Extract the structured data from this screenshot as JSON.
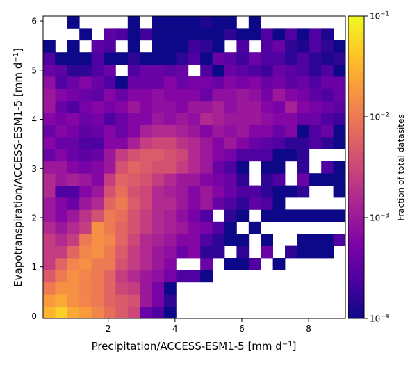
{
  "chart_data": {
    "type": "heatmap",
    "title": "",
    "xlabel": "Precipitation/ACCESS-ESM1-5 [mm d",
    "xlabel_sup": "−1",
    "xlabel_end": "]",
    "ylabel": "Evapotranspiration/ACCESS-ESM1-5 [mm d",
    "ylabel_sup": "−1",
    "ylabel_end": "]",
    "xlim": [
      0.05,
      9.1
    ],
    "ylim": [
      -0.05,
      6.1
    ],
    "xticks": [
      2,
      4,
      6,
      8
    ],
    "yticks": [
      0,
      1,
      2,
      3,
      4,
      5,
      6
    ],
    "colormap": "plasma",
    "color_scale": "log",
    "colorbar": {
      "label": "Fraction of total datasites",
      "min": 0.0001,
      "max": 0.1,
      "ticks": [
        {
          "value": 0.1,
          "base": "10",
          "exp": "−1"
        },
        {
          "value": 0.01,
          "base": "10",
          "exp": "−2"
        },
        {
          "value": 0.001,
          "base": "10",
          "exp": "−3"
        },
        {
          "value": 0.0001,
          "base": "10",
          "exp": "−4"
        }
      ]
    },
    "grid": false,
    "bins": {
      "nx": 25,
      "ny": 25,
      "x_edges": [
        0.05,
        9.1
      ],
      "y_edges": [
        -0.05,
        6.1
      ],
      "note_empty": "white cells are empty bins"
    },
    "cells_log10": [
      "-1.5,-1.3,-1.6,-1.7,-1.9,-2.1,-2.3,-2.5,-3.4,-3.6,-4.0,_,_,_,_,_,_,_,_,_,_,_,_,_,_",
      "-1.7,-1.6,-1.8,-1.9,-2.0,-2.2,-2.3,-2.4,-3.0,-3.3,-3.8,_,_,_,_,_,_,_,_,_,_,_,_,_,_",
      "-2.0,-1.8,-1.8,-1.9,-2.0,-2.2,-2.5,-2.6,-3.0,-3.3,-4.0,_,_,_,_,_,_,_,_,_,_,_,_,_,_",
      "-2.3,-2.0,-1.8,-1.9,-2.0,-2.2,-2.6,-2.8,-3.0,-3.1,-3.3,-3.6,-3.6,-4.0,_,_,_,_,_,_,_,_,_,_,_",
      "-2.6,-2.2,-1.9,-1.8,-2.0,-2.0,-2.4,-2.6,-2.8,-3.0,-3.2,_,_,-3.4,_,-4.0,-4.0,-3.6,_,-4.0,_,_,_,_,_",
      "-2.6,-2.6,-2.2,-1.9,-1.8,-2.0,-2.3,-2.6,-2.8,-3.0,-3.1,-3.4,-3.2,-3.8,-3.8,_,-3.8,_,-3.4,_,-3.8,-4.0,-4.0,-4.0,_",
      "-2.6,-2.8,-2.6,-2.0,-1.8,-1.9,-2.2,-2.5,-2.8,-2.9,-3.0,-3.2,-3.2,-3.6,-3.8,-4.0,-4.0,_,-4.0,_,_,-4.0,-4.0,-4.0,-3.6",
      "-2.8,-3.0,-2.8,-2.6,-1.8,-2.0,-2.2,-2.4,-2.6,-2.8,-2.9,-3.0,-3.2,-3.3,-3.6,-4.0,_,-4.0,_,_,_,_,_,_,_",
      "-3.0,-3.2,-3.0,-2.7,-2.4,-2.0,-2.1,-2.4,-2.6,-2.8,-2.9,-3.1,-3.3,-3.6,_,-3.8,-4.0,_,-4.0,-4.0,-4.0,-4.0,-4.0,-4.0,-4.0",
      "-3.0,-3.2,-3.4,-3.0,-2.8,-2.2,-2.0,-2.3,-2.5,-2.8,-2.8,-3.0,-3.2,-3.0,-3.4,-3.6,-3.8,-3.5,-3.6,-4.0,_,_,_,_,_",
      "-2.8,-3.6,-3.6,-3.2,-3.0,-2.4,-2.1,-2.4,-2.5,-2.8,-2.9,-3.0,-3.2,-3.0,-3.2,-3.4,-3.6,-3.6,-3.8,-4.0,-4.0,-3.8,_,_,-4.0",
      "-2.8,-3.0,-2.9,-3.0,-3.2,-2.6,-2.2,-2.3,-2.4,-2.6,-2.8,-3.0,-3.0,-3.2,-3.3,-3.4,-3.8,_,-3.8,-3.6,_,-3.4,-4.0,-4.0,-4.0",
      "-3.0,-3.0,-3.2,-3.3,-3.2,-3.0,-2.4,-2.2,-2.3,-2.4,-2.4,-2.6,-2.8,-3.0,-3.4,-3.6,-4.0,_,-4.0,-4.0,_,-3.8,_,-3.6,-4.0",
      "-3.4,-3.2,-3.4,-3.5,-3.4,-3.0,-2.6,-2.4,-2.3,-2.3,-2.4,-2.5,-2.8,-3.0,-3.2,-3.3,-3.6,-3.6,-3.6,-4.0,-4.0,-3.8,_,_,_",
      "-3.2,-3.4,-3.4,-3.6,-3.6,-3.2,-3.2,-2.9,-2.6,-2.5,-2.5,-2.7,-2.8,-3.0,-3.2,-3.0,-3.2,-3.4,-3.5,-3.6,-3.8,-3.8,-3.6,-3.8,-4.0",
      "-3.4,-3.2,-3.3,-3.5,-3.4,-3.2,-3.4,-3.2,-2.9,-2.8,-2.8,-2.9,-3.0,-3.2,-3.0,-3.1,-3.0,-3.2,-3.2,-3.4,-3.2,-4.0,-3.6,-3.4,-4.0",
      "-3.2,-3.3,-3.2,-3.4,-3.3,-3.6,-3.4,-3.2,-3.2,-3.0,-3.1,-3.0,-3.1,-2.8,-2.9,-3.0,-3.0,-3.0,-3.1,-3.2,-3.2,-3.4,-3.4,-3.6,-3.7",
      "-3.0,-3.4,-3.6,-3.3,-3.2,-3.3,-3.2,-3.0,-3.2,-3.1,-3.1,-3.2,-3.0,-3.0,-2.9,-3.1,-3.0,-3.0,-3.2,-3.3,-2.9,-3.2,-3.3,-3.4,-3.5",
      "-3.0,-3.2,-3.3,-3.4,-3.5,-3.2,-3.4,-3.2,-3.2,-3.1,-3.2,-3.2,-3.2,-3.4,-3.1,-3.1,-3.0,-3.1,-3.3,-3.0,-3.2,-3.3,-3.5,-3.6,-3.4",
      "-3.1,-3.6,-3.4,-3.2,-3.4,-3.6,-4.0,-3.4,-3.4,-3.4,-3.2,-3.4,-3.3,-3.3,-3.4,-3.2,-3.3,-3.2,-3.4,-3.3,-3.5,-3.4,-3.6,-3.4,-3.4",
      "-3.4,-3.5,-3.8,-3.8,-3.6,-3.4,_,-3.6,-3.4,-3.4,-3.5,-3.4,_,-3.6,-4.0,-3.4,-3.5,-3.6,-3.7,-3.4,-3.5,-3.6,-3.8,-3.6,-4.0",
      "-3.6,-4.0,-4.0,-4.0,-3.6,-4.0,-4.0,-3.8,-4.0,-4.0,-4.0,-3.8,-3.6,-4.0,-3.4,-3.5,-3.7,-3.4,-3.6,-3.6,-3.8,-3.6,-3.8,-3.9,-3.8",
      "-4.0,_,-4.0,_,-3.5,-3.6,_,-4.0,_,-4.0,-4.0,-4.0,-3.7,-3.8,-4.0,_,-3.6,_,-3.6,-3.4,-3.8,-3.9,-3.6,-3.8,-4.0",
      "_,_,_,-4.0,_,-3.5,-3.6,-4.0,-3.7,-4.0,-4.0,-4.0,-4.0,-4.0,-4.0,-3.8,-4.0,-4.0,-3.6,-4.0,-3.6,-4.0,-3.6,-3.9,_",
      "_,_,-4.0,_,_,_,_,-4.0,_,-4.0,-4.0,-4.0,-4.0,-3.9,-4.0,-4.0,_,-4.0,_,_,_,_,_,_,_"
    ]
  }
}
